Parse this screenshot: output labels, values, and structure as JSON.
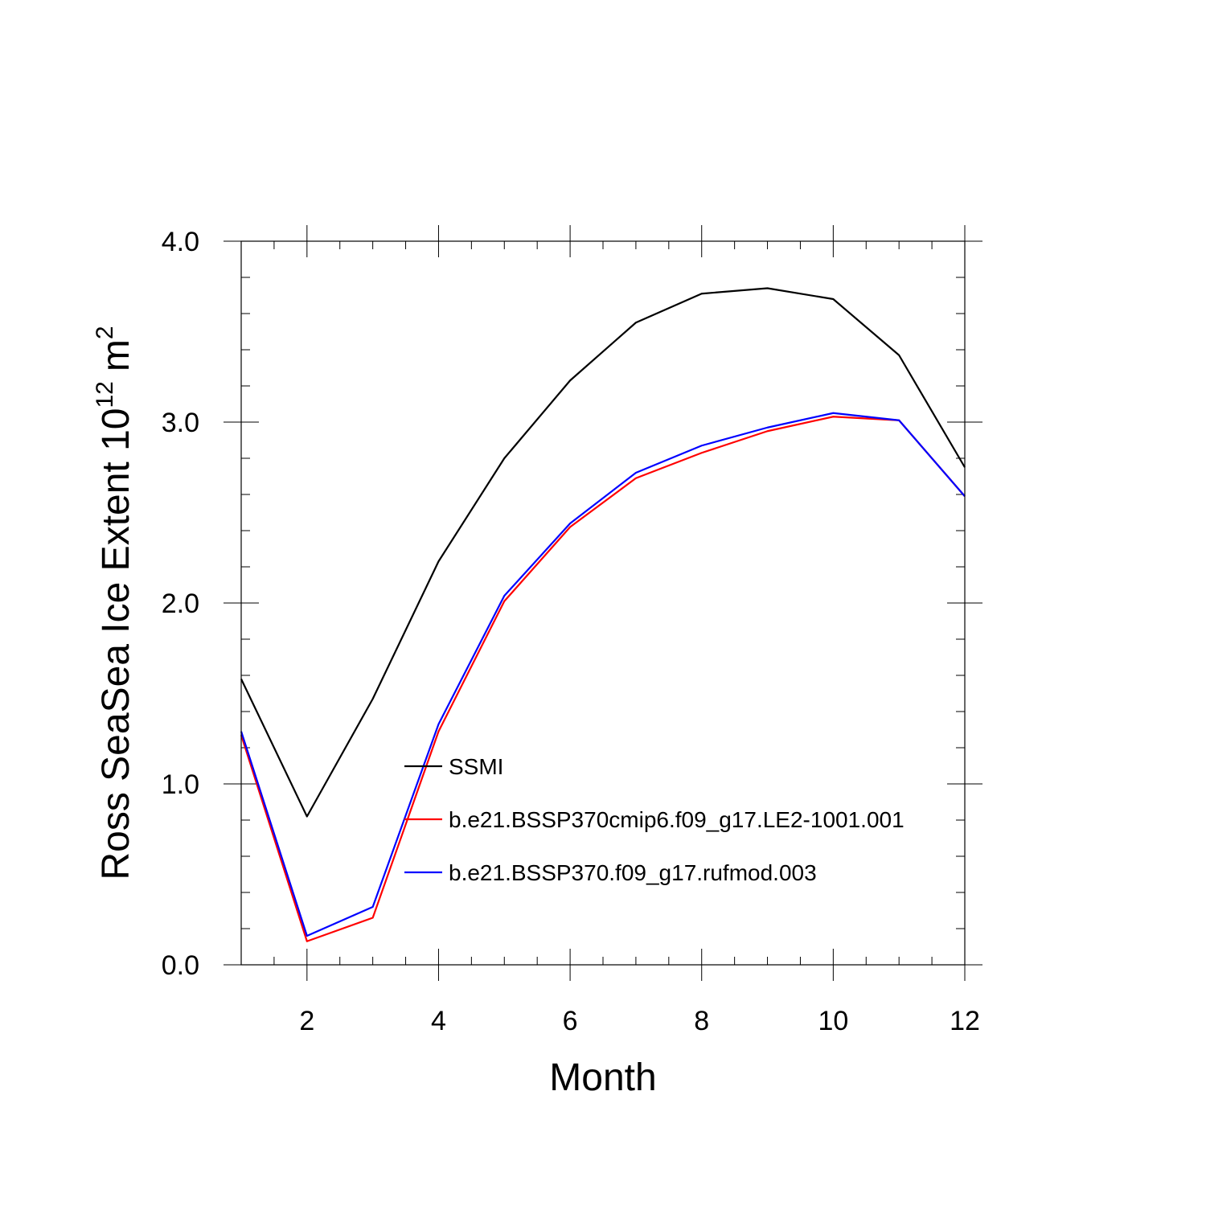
{
  "chart_data": {
    "type": "line",
    "xlabel": "Month",
    "ylabel": "Ross SeaSea Ice Extent 10",
    "ylabel_superscript": "12",
    "ylabel_unit": "m",
    "ylabel_unit_superscript": "2",
    "xlim": [
      1,
      12
    ],
    "ylim": [
      0,
      4
    ],
    "x_ticks": [
      2,
      4,
      6,
      8,
      10,
      12
    ],
    "x_tick_labels": [
      "2",
      "4",
      "6",
      "8",
      "10",
      "12"
    ],
    "y_ticks": [
      0,
      1,
      2,
      3,
      4
    ],
    "y_tick_labels": [
      "0.0",
      "1.0",
      "2.0",
      "3.0",
      "4.0"
    ],
    "grid": false,
    "legend_position": "center",
    "x": [
      1,
      2,
      3,
      4,
      5,
      6,
      7,
      8,
      9,
      10,
      11,
      12
    ],
    "series": [
      {
        "name": "SSMI",
        "color": "#000000",
        "values": [
          1.58,
          0.82,
          1.47,
          2.23,
          2.8,
          3.23,
          3.55,
          3.71,
          3.74,
          3.68,
          3.37,
          2.75
        ]
      },
      {
        "name": "b.e21.BSSP370cmip6.f09_g17.LE2-1001.001",
        "color": "#ff0000",
        "values": [
          1.27,
          0.13,
          0.26,
          1.29,
          2.01,
          2.42,
          2.69,
          2.83,
          2.95,
          3.03,
          3.01,
          2.59
        ]
      },
      {
        "name": "b.e21.BSSP370.f09_g17.rufmod.003",
        "color": "#0000ff",
        "values": [
          1.29,
          0.16,
          0.32,
          1.33,
          2.04,
          2.44,
          2.72,
          2.87,
          2.97,
          3.05,
          3.01,
          2.59
        ]
      }
    ]
  }
}
